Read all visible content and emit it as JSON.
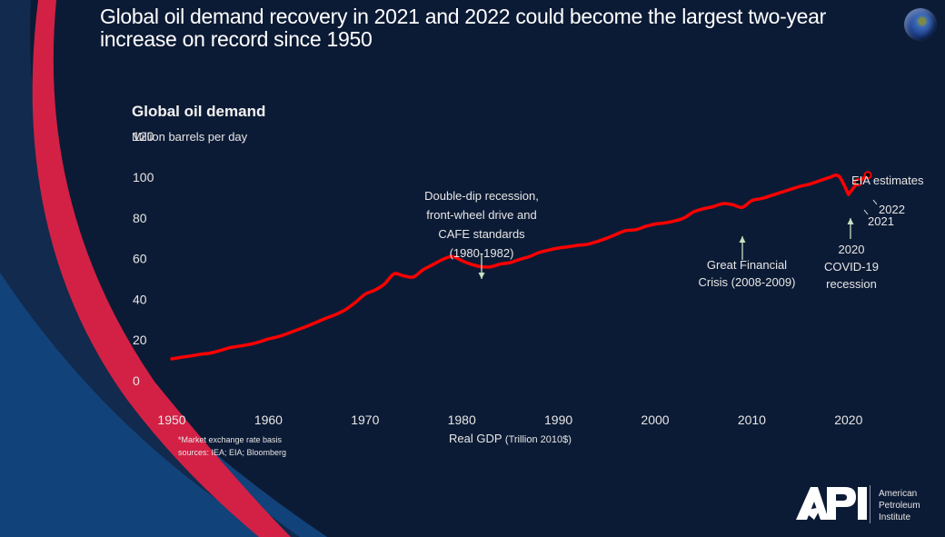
{
  "slide": {
    "title": "Global oil demand recovery in 2021 and 2022 could become the largest two-year increase on record since 1950",
    "globe_icon": "earth-globe-icon"
  },
  "colors": {
    "background": "#0c1b35",
    "accent_red": "#d22145",
    "accent_blue": "#12427a",
    "line": "#ff0000",
    "arrow": "#c8e0c0"
  },
  "chart_data": {
    "type": "line",
    "title": "Global oil demand",
    "subtitle": "Million barrels per day",
    "xlabel": "Real GDP",
    "xlabel_unit": "(Trillion 2010$)",
    "ylabel": "Million barrels per day",
    "ylim": [
      0,
      120
    ],
    "yticks": [
      "0",
      "20",
      "40",
      "60",
      "80",
      "100",
      "120"
    ],
    "xlim": [
      1950,
      2022
    ],
    "xticks": [
      "1950",
      "1960",
      "1970",
      "1980",
      "1990",
      "2000",
      "2010",
      "2020"
    ],
    "grid": false,
    "legend": "none",
    "series": [
      {
        "name": "Global oil demand",
        "x": [
          1950,
          1951,
          1952,
          1953,
          1954,
          1955,
          1956,
          1957,
          1958,
          1959,
          1960,
          1961,
          1962,
          1963,
          1964,
          1965,
          1966,
          1967,
          1968,
          1969,
          1970,
          1971,
          1972,
          1973,
          1974,
          1975,
          1976,
          1977,
          1978,
          1979,
          1980,
          1981,
          1982,
          1983,
          1984,
          1985,
          1986,
          1987,
          1988,
          1989,
          1990,
          1991,
          1992,
          1993,
          1994,
          1995,
          1996,
          1997,
          1998,
          1999,
          2000,
          2001,
          2002,
          2003,
          2004,
          2005,
          2006,
          2007,
          2008,
          2009,
          2010,
          2011,
          2012,
          2013,
          2014,
          2015,
          2016,
          2017,
          2018,
          2019,
          2020
        ],
        "values": [
          10.7,
          11.5,
          12.2,
          13.0,
          13.6,
          14.8,
          16.2,
          17.0,
          17.8,
          19.0,
          20.5,
          21.6,
          23.2,
          25.0,
          26.8,
          28.8,
          30.8,
          32.6,
          35.0,
          38.5,
          42.5,
          44.5,
          47.5,
          52.5,
          51.5,
          51.0,
          54.5,
          57.0,
          59.5,
          61.0,
          59.0,
          57.2,
          56.0,
          56.0,
          57.3,
          58.0,
          59.6,
          61.0,
          63.0,
          64.2,
          65.2,
          65.8,
          66.5,
          67.0,
          68.4,
          70.0,
          72.0,
          73.8,
          74.2,
          75.8,
          77.0,
          77.5,
          78.5,
          80.0,
          83.0,
          84.5,
          85.5,
          87.0,
          86.5,
          85.2,
          88.5,
          89.5,
          91.0,
          92.5,
          94.0,
          95.5,
          96.6,
          98.2,
          99.8,
          100.5,
          91.5
        ]
      },
      {
        "name": "EIA estimates",
        "x": [
          2020,
          2021,
          2022
        ],
        "values": [
          91.5,
          97.5,
          101.0
        ]
      }
    ],
    "annotations": [
      {
        "id": "double-dip",
        "lines": [
          "Double-dip recession,",
          "front-wheel drive and",
          "CAFE standards",
          "(1980-1982)"
        ],
        "year": 1982,
        "arrow": "down"
      },
      {
        "id": "gfc",
        "lines": [
          "Great Financial",
          "Crisis (2008-2009)"
        ],
        "year": 2009,
        "arrow": "up"
      },
      {
        "id": "covid",
        "lines": [
          "2020",
          "COVID-19",
          "recession"
        ],
        "year": 2020,
        "arrow": "up"
      },
      {
        "id": "eia",
        "lines": [
          "EIA estimates"
        ]
      },
      {
        "id": "label-2021",
        "lines": [
          "2021"
        ],
        "year": 2021
      },
      {
        "id": "label-2022",
        "lines": [
          "2022"
        ],
        "year": 2022
      }
    ]
  },
  "footnote": {
    "line1": "*Market exchange rate basis",
    "line2": "sources:  IEA; EIA; Bloomberg"
  },
  "logo": {
    "mark": "API",
    "line1": "American",
    "line2": "Petroleum",
    "line3": "Institute"
  }
}
